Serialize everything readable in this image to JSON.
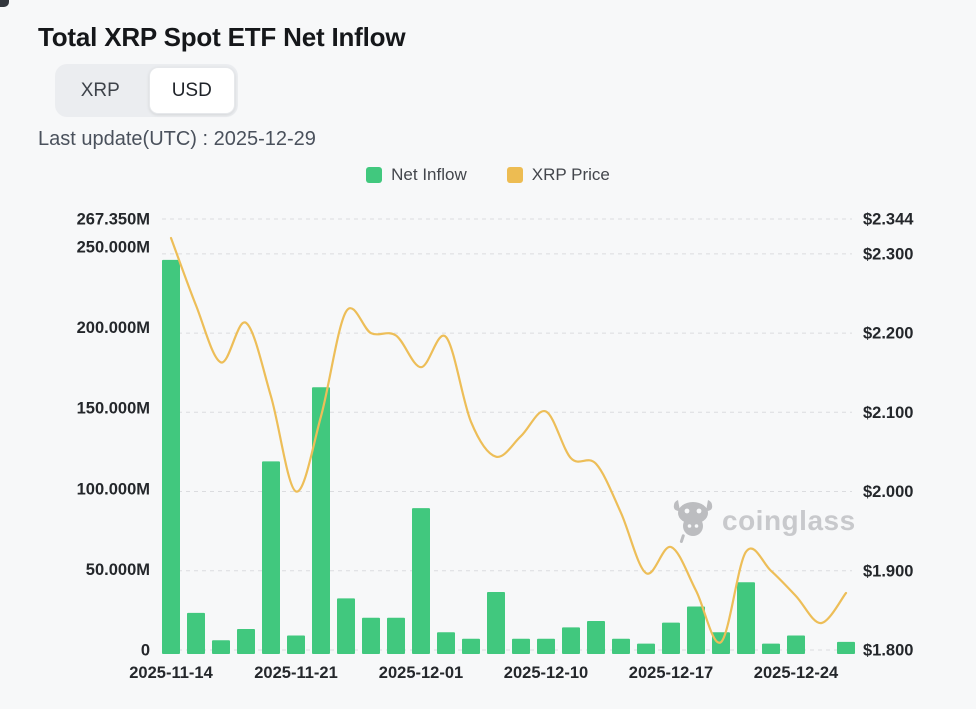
{
  "header": {
    "title": "Total XRP Spot ETF Net Inflow",
    "toggle": {
      "options": [
        "XRP",
        "USD"
      ],
      "selected": "USD"
    },
    "last_update": "Last update(UTC) : 2025-12-29"
  },
  "legend": [
    {
      "label": "Net Inflow",
      "color": "#41c87e"
    },
    {
      "label": "XRP Price",
      "color": "#edbc52"
    }
  ],
  "watermark": "coinglass",
  "chart_data": {
    "type": "combo",
    "title": "Total XRP Spot ETF Net Inflow",
    "n_slots": 28,
    "x_tick_labels": [
      {
        "slot": 0,
        "label": "2025-11-14"
      },
      {
        "slot": 5,
        "label": "2025-11-21"
      },
      {
        "slot": 10,
        "label": "2025-12-01"
      },
      {
        "slot": 15,
        "label": "2025-12-10"
      },
      {
        "slot": 20,
        "label": "2025-12-17"
      },
      {
        "slot": 25,
        "label": "2025-12-24"
      }
    ],
    "left_axis": {
      "min": 0,
      "max": 267.35,
      "unit": "M USD",
      "ticks": [
        {
          "label": "267.350M",
          "value": 267.35
        },
        {
          "label": "250.000M",
          "value": 250
        },
        {
          "label": "200.000M",
          "value": 200
        },
        {
          "label": "150.000M",
          "value": 150
        },
        {
          "label": "100.000M",
          "value": 100
        },
        {
          "label": "50.000M",
          "value": 50
        },
        {
          "label": "0",
          "value": 0
        }
      ]
    },
    "right_axis": {
      "min": 1.8,
      "max": 2.344,
      "unit": "USD",
      "ticks": [
        {
          "label": "$2.344",
          "value": 2.344
        },
        {
          "label": "$2.300",
          "value": 2.3
        },
        {
          "label": "$2.200",
          "value": 2.2
        },
        {
          "label": "$2.100",
          "value": 2.1
        },
        {
          "label": "$2.000",
          "value": 2.0
        },
        {
          "label": "$1.900",
          "value": 1.9
        },
        {
          "label": "$1.800",
          "value": 1.8
        }
      ]
    },
    "series": [
      {
        "name": "Net Inflow",
        "type": "bar",
        "color": "#41c87e",
        "unit": "M USD",
        "values": [
          242,
          23,
          6,
          13,
          117,
          9,
          163,
          32,
          20,
          20,
          88,
          11,
          7,
          36,
          7,
          7,
          14,
          18,
          7,
          4,
          17,
          27,
          11,
          42,
          4,
          9,
          0,
          5
        ]
      },
      {
        "name": "XRP Price",
        "type": "line",
        "color": "#edbe58",
        "unit": "USD",
        "values": [
          2.32,
          2.235,
          2.163,
          2.213,
          2.12,
          2.0,
          2.095,
          2.227,
          2.2,
          2.197,
          2.157,
          2.195,
          2.088,
          2.044,
          2.07,
          2.101,
          2.042,
          2.035,
          1.973,
          1.897,
          1.93,
          1.875,
          1.81,
          1.924,
          1.9,
          1.868,
          1.834,
          1.872
        ]
      }
    ],
    "grid": {
      "dashed": true,
      "color": "#dbdcdf"
    },
    "legend_position": "top-center"
  }
}
